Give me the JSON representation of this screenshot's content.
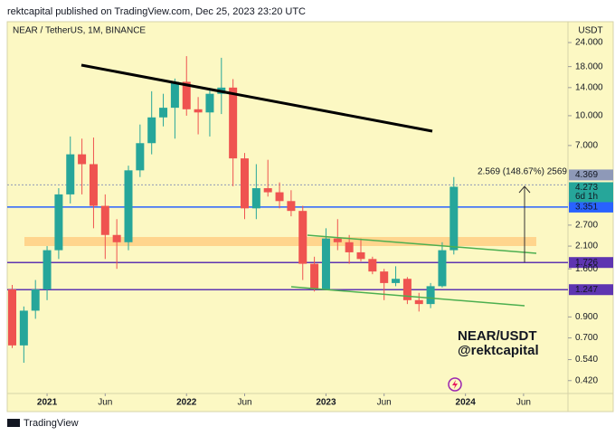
{
  "header": {
    "published": "rektcapital published on TradingView.com, Dec 25, 2023 23:20 UTC",
    "footer": "TradingView"
  },
  "chart_data": {
    "type": "candlestick",
    "symbol": "NEAR / TetherUS, 1M, BINANCE",
    "currency": "USDT",
    "x": [
      "2020-10",
      "2020-11",
      "2020-12",
      "2021-01",
      "2021-02",
      "2021-03",
      "2021-04",
      "2021-05",
      "2021-06",
      "2021-07",
      "2021-08",
      "2021-09",
      "2021-10",
      "2021-11",
      "2021-12",
      "2022-01",
      "2022-02",
      "2022-03",
      "2022-04",
      "2022-05",
      "2022-06",
      "2022-07",
      "2022-08",
      "2022-09",
      "2022-10",
      "2022-11",
      "2022-12",
      "2023-01",
      "2023-02",
      "2023-03",
      "2023-04",
      "2023-05",
      "2023-06",
      "2023-07",
      "2023-08",
      "2023-09",
      "2023-10",
      "2023-11",
      "2023-12"
    ],
    "open": [
      1.25,
      0.64,
      0.97,
      1.25,
      2.0,
      3.9,
      6.3,
      5.6,
      3.4,
      2.4,
      2.2,
      5.2,
      7.2,
      9.8,
      11.0,
      15.0,
      10.8,
      10.4,
      13.0,
      14.0,
      6.0,
      3.3,
      4.2,
      4.0,
      3.6,
      3.2,
      1.7,
      1.25,
      2.3,
      2.2,
      1.95,
      1.8,
      1.55,
      1.35,
      1.42,
      1.1,
      1.05,
      1.3,
      2.0
    ],
    "high": [
      1.32,
      1.02,
      1.4,
      2.1,
      4.2,
      7.8,
      7.6,
      7.7,
      3.9,
      2.9,
      5.5,
      9.0,
      13.4,
      13.0,
      15.6,
      20.4,
      12.5,
      13.5,
      20.0,
      15.5,
      6.4,
      5.6,
      5.9,
      4.5,
      4.1,
      3.4,
      1.85,
      2.6,
      2.9,
      2.4,
      2.3,
      1.85,
      1.6,
      1.65,
      1.45,
      1.2,
      1.35,
      2.2,
      4.8
    ],
    "low": [
      0.62,
      0.52,
      0.88,
      1.1,
      1.8,
      3.5,
      3.9,
      2.6,
      1.8,
      1.6,
      2.0,
      4.8,
      6.3,
      8.8,
      7.6,
      10.0,
      8.0,
      7.8,
      10.2,
      4.3,
      2.9,
      2.9,
      3.8,
      3.3,
      3.0,
      1.4,
      1.22,
      1.25,
      2.0,
      1.7,
      1.75,
      1.5,
      1.1,
      1.3,
      1.05,
      0.96,
      1.0,
      1.28,
      1.9
    ],
    "close": [
      0.64,
      0.97,
      1.25,
      2.0,
      3.9,
      6.3,
      5.6,
      3.4,
      2.4,
      2.2,
      5.2,
      7.2,
      9.8,
      11.0,
      15.0,
      10.8,
      10.4,
      13.0,
      14.0,
      6.0,
      3.3,
      4.2,
      4.0,
      3.6,
      3.2,
      1.7,
      1.25,
      2.3,
      2.2,
      1.95,
      1.8,
      1.55,
      1.35,
      1.42,
      1.1,
      1.05,
      1.3,
      2.0,
      4.273
    ],
    "up_color": "#26a69a",
    "down_color": "#ef5350",
    "log_scale": true,
    "grid": false,
    "ylim": [
      0.36,
      30.8
    ],
    "yticks": [
      {
        "value": 24,
        "label": "24.000"
      },
      {
        "value": 18,
        "label": "18.000"
      },
      {
        "value": 14,
        "label": "14.000"
      },
      {
        "value": 10,
        "label": "10.000"
      },
      {
        "value": 7,
        "label": "7.000"
      },
      {
        "value": 2.7,
        "label": "2.700"
      },
      {
        "value": 2.1,
        "label": "2.100"
      },
      {
        "value": 1.6,
        "label": "1.600"
      },
      {
        "value": 0.9,
        "label": "0.900"
      },
      {
        "value": 0.7,
        "label": "0.700"
      },
      {
        "value": 0.54,
        "label": "0.540"
      },
      {
        "value": 0.42,
        "label": "0.420"
      }
    ],
    "xticks": [
      {
        "value": "2021-01",
        "label": "2021"
      },
      {
        "value": "2021-06",
        "label": "Jun"
      },
      {
        "value": "2022-01",
        "label": "2022"
      },
      {
        "value": "2022-06",
        "label": "Jun"
      },
      {
        "value": "2023-01",
        "label": "2023"
      },
      {
        "value": "2023-06",
        "label": "Jun"
      },
      {
        "value": "2024-01",
        "label": "2024"
      },
      {
        "value": "2024-06",
        "label": "Jun"
      }
    ],
    "levels": [
      {
        "value": 4.369,
        "label": "4.369",
        "color": "#8e99b8"
      },
      {
        "value": 3.351,
        "label": "3.351",
        "color": "#2962ff"
      },
      {
        "value": 1.726,
        "label": "1.726",
        "color": "#5e35b1"
      },
      {
        "value": 1.247,
        "label": "1.247",
        "color": "#5e35b1"
      }
    ],
    "last_price": {
      "value": 4.273,
      "label": "4.273",
      "countdown": "6d 1h",
      "color": "#26a69a"
    },
    "measure": "2.569 (148.67%) 2569",
    "annotations": [
      "NEAR/USDT",
      "@rektcapital"
    ]
  }
}
